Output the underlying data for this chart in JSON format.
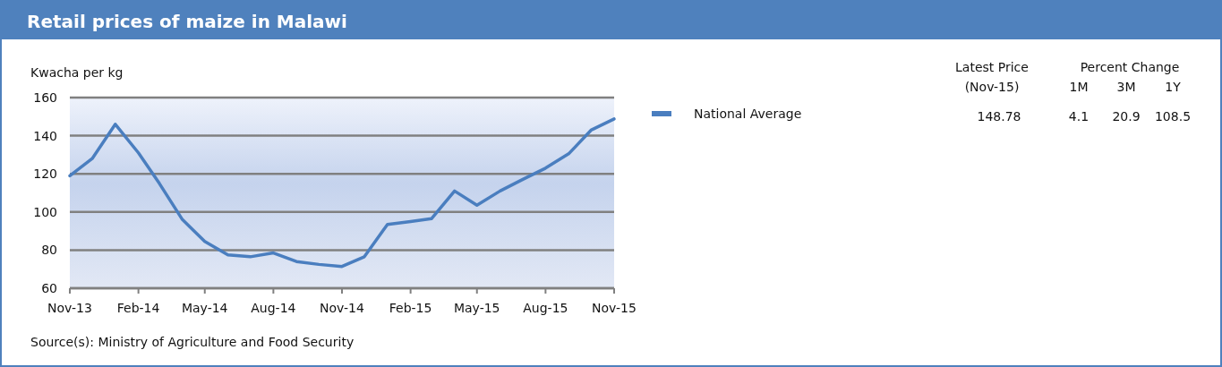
{
  "chart_data": {
    "type": "line",
    "title": "Retail prices of maize in Malawi",
    "ylabel": "Kwacha per kg",
    "x": [
      "2013-11",
      "2013-12",
      "2014-01",
      "2014-02",
      "2014-03",
      "2014-04",
      "2014-05",
      "2014-06",
      "2014-07",
      "2014-08",
      "2014-09",
      "2014-10",
      "2014-11",
      "2014-12",
      "2015-01",
      "2015-02",
      "2015-03",
      "2015-04",
      "2015-05",
      "2015-06",
      "2015-07",
      "2015-08",
      "2015-09",
      "2015-10",
      "2015-11"
    ],
    "series": [
      {
        "name": "National Average",
        "color": "#4a7ebf",
        "values": [
          119,
          128,
          146,
          131,
          115,
          96,
          84.5,
          77.5,
          76.5,
          78.5,
          74,
          72.5,
          71.4,
          76.5,
          93.5,
          95,
          96.5,
          111,
          103.5,
          111,
          117,
          123,
          130.5,
          142.9,
          148.78
        ]
      }
    ],
    "xlim": [
      "2013-11",
      "2015-11"
    ],
    "xticks": [
      {
        "value": "2013-11",
        "label": "Nov-13"
      },
      {
        "value": "2014-02",
        "label": "Feb-14"
      },
      {
        "value": "2014-05",
        "label": "May-14"
      },
      {
        "value": "2014-08",
        "label": "Aug-14"
      },
      {
        "value": "2014-11",
        "label": "Nov-14"
      },
      {
        "value": "2015-02",
        "label": "Feb-15"
      },
      {
        "value": "2015-05",
        "label": "May-15"
      },
      {
        "value": "2015-08",
        "label": "Aug-15"
      },
      {
        "value": "2015-11",
        "label": "Nov-15"
      }
    ],
    "ylim": [
      60,
      160
    ],
    "yticks": [
      60,
      80,
      100,
      120,
      140,
      160
    ],
    "grid": "y",
    "legend": "right",
    "line_style": "solid",
    "marker": "none",
    "annotations": [
      "Source(s): Ministry of Agriculture and Food Security",
      "Latest Price",
      "(Nov-15)",
      "Percent Change",
      "1M",
      "3M",
      "1Y",
      "148.78",
      "4.1",
      "20.9",
      "108.5"
    ]
  }
}
